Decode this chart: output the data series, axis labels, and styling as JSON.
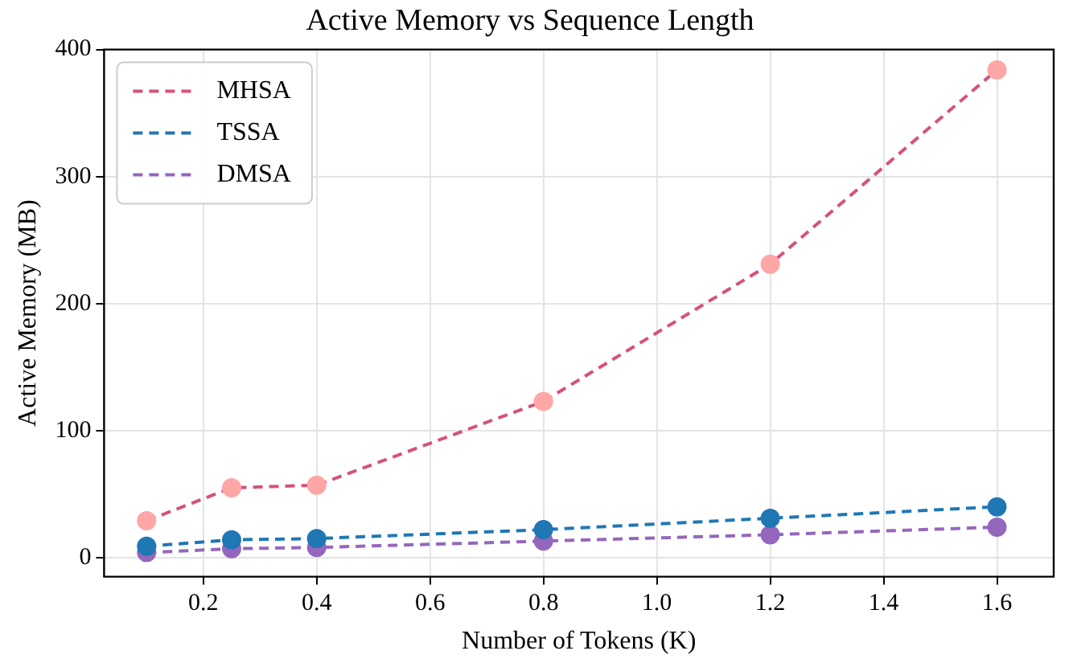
{
  "chart_data": {
    "type": "line",
    "title": "Active Memory vs Sequence Length",
    "xlabel": "Number of Tokens (K)",
    "ylabel": "Active Memory (MB)",
    "x": [
      0.1,
      0.25,
      0.4,
      0.8,
      1.2,
      1.6
    ],
    "series": [
      {
        "name": "MHSA",
        "color": "#d6517d",
        "colors": [
          "#ffa6a6",
          "#ffa6a6",
          "#ffa6a6",
          "#ffa6a6",
          "#ffa6a6",
          "#ffa6a6"
        ],
        "values": [
          29,
          55,
          57,
          123,
          231,
          384
        ]
      },
      {
        "name": "TSSA",
        "color": "#1f77b4",
        "values": [
          9,
          14,
          15,
          22,
          31,
          40
        ]
      },
      {
        "name": "DMSA",
        "color": "#9467bd",
        "values": [
          4,
          7,
          8,
          13,
          18,
          24
        ]
      }
    ],
    "xlim": [
      0.025,
      1.7
    ],
    "xticks": [
      0.2,
      0.4,
      0.6,
      0.8,
      {
        "value": 1,
        "label": "1.0"
      },
      1.2,
      1.4,
      1.6
    ],
    "ylim": [
      -15,
      400
    ],
    "yticks": [
      0,
      100,
      200,
      300,
      400
    ],
    "grid": true,
    "legend": "top left",
    "marker": "circle",
    "line_style": "dashed"
  }
}
